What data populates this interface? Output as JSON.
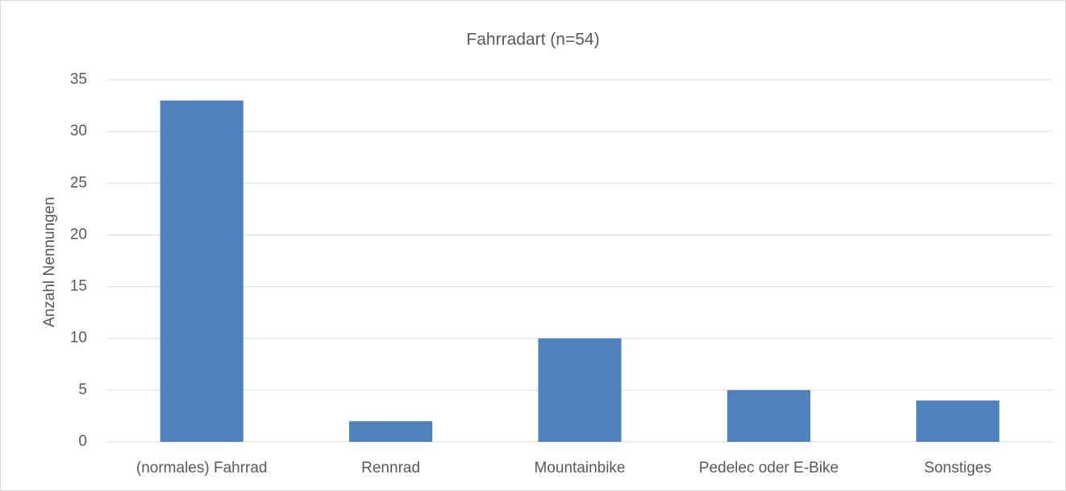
{
  "chart_data": {
    "type": "bar",
    "title": "Fahrradart (n=54)",
    "y_label": "Anzahl Nennungen",
    "categories": [
      "(normales) Fahrrad",
      "Rennrad",
      "Mountainbike",
      "Pedelec oder E-Bike",
      "Sonstiges"
    ],
    "values": [
      33,
      2,
      10,
      5,
      4
    ],
    "color": "#4f81bd",
    "ylim": [
      0,
      35
    ],
    "yticks": [
      0,
      5,
      10,
      15,
      20,
      25,
      30,
      35
    ],
    "grid": true
  }
}
